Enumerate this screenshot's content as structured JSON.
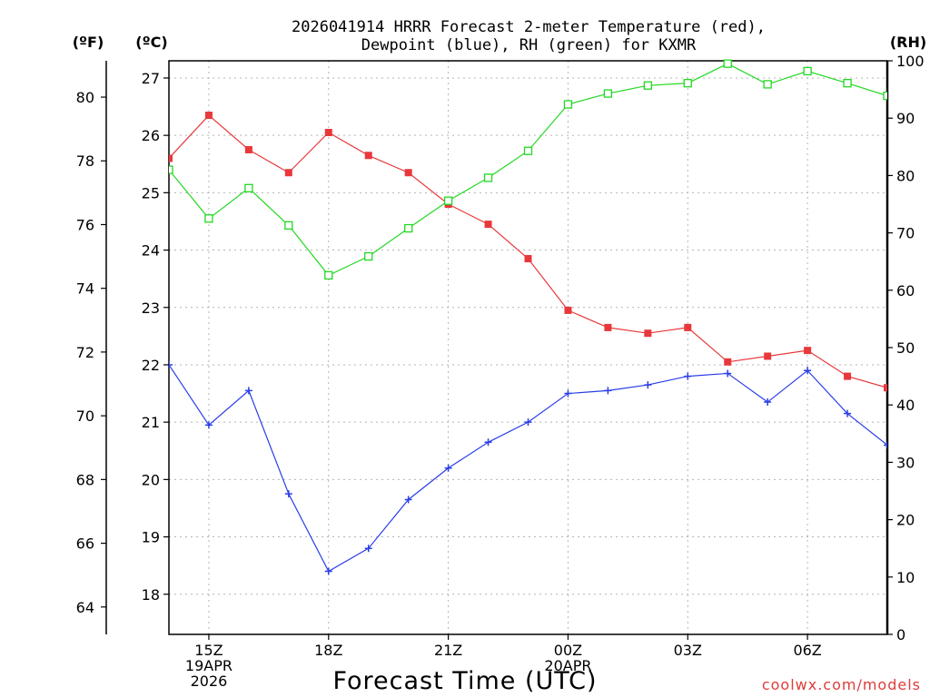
{
  "chart_data": {
    "type": "line",
    "title_line1": "2026041914 HRRR Forecast 2-meter Temperature (red),",
    "title_line2": "Dewpoint (blue), RH (green) for KXMR",
    "xlabel": "Forecast Time (UTC)",
    "credit": "coolwx.com/models",
    "left_outer_axis_label": "(ºF)",
    "left_inner_axis_label": "(ºC)",
    "right_axis_label": "(RH)",
    "x_hours": [
      14,
      15,
      16,
      17,
      18,
      19,
      20,
      21,
      22,
      23,
      24,
      25,
      26,
      27,
      28,
      29,
      30,
      31,
      32
    ],
    "x_ticks": [
      {
        "hour": 15,
        "lines": [
          "15Z",
          "19APR",
          "2026"
        ]
      },
      {
        "hour": 18,
        "lines": [
          "18Z"
        ]
      },
      {
        "hour": 21,
        "lines": [
          "21Z"
        ]
      },
      {
        "hour": 24,
        "lines": [
          "00Z",
          "20APR"
        ]
      },
      {
        "hour": 27,
        "lines": [
          "03Z"
        ]
      },
      {
        "hour": 30,
        "lines": [
          "06Z"
        ]
      }
    ],
    "x_range": [
      14,
      32
    ],
    "celsius_range": [
      17.3,
      27.3
    ],
    "celsius_ticks": [
      18,
      19,
      20,
      21,
      22,
      23,
      24,
      25,
      26,
      27
    ],
    "fahrenheit_ticks": [
      64,
      66,
      68,
      70,
      72,
      74,
      76,
      78,
      80
    ],
    "rh_range": [
      0,
      100
    ],
    "rh_ticks": [
      0,
      10,
      20,
      30,
      40,
      50,
      60,
      70,
      80,
      90,
      100
    ],
    "grid": true,
    "series": [
      {
        "name": "Temperature",
        "color": "#e8383b",
        "marker": "filled-square",
        "values": [
          25.6,
          26.35,
          25.75,
          25.35,
          26.05,
          25.65,
          25.35,
          24.8,
          24.45,
          23.85,
          22.95,
          22.65,
          22.55,
          22.65,
          22.05,
          22.15,
          22.25,
          21.8,
          21.6
        ]
      },
      {
        "name": "Dewpoint",
        "color": "#2a3de8",
        "marker": "plus",
        "values": [
          22.0,
          20.95,
          21.55,
          19.75,
          18.4,
          18.8,
          19.65,
          20.2,
          20.65,
          21.0,
          21.5,
          21.55,
          21.65,
          21.8,
          21.85,
          21.35,
          21.9,
          21.15,
          20.6
        ]
      },
      {
        "name": "RH",
        "color": "#22d822",
        "marker": "open-square",
        "axis": "right",
        "values": [
          81,
          72.5,
          77.8,
          71.3,
          62.6,
          65.9,
          70.8,
          75.6,
          79.6,
          84.3,
          92.4,
          94.3,
          95.7,
          96.1,
          99.5,
          95.9,
          98.2,
          96.1,
          93.9
        ]
      }
    ]
  }
}
